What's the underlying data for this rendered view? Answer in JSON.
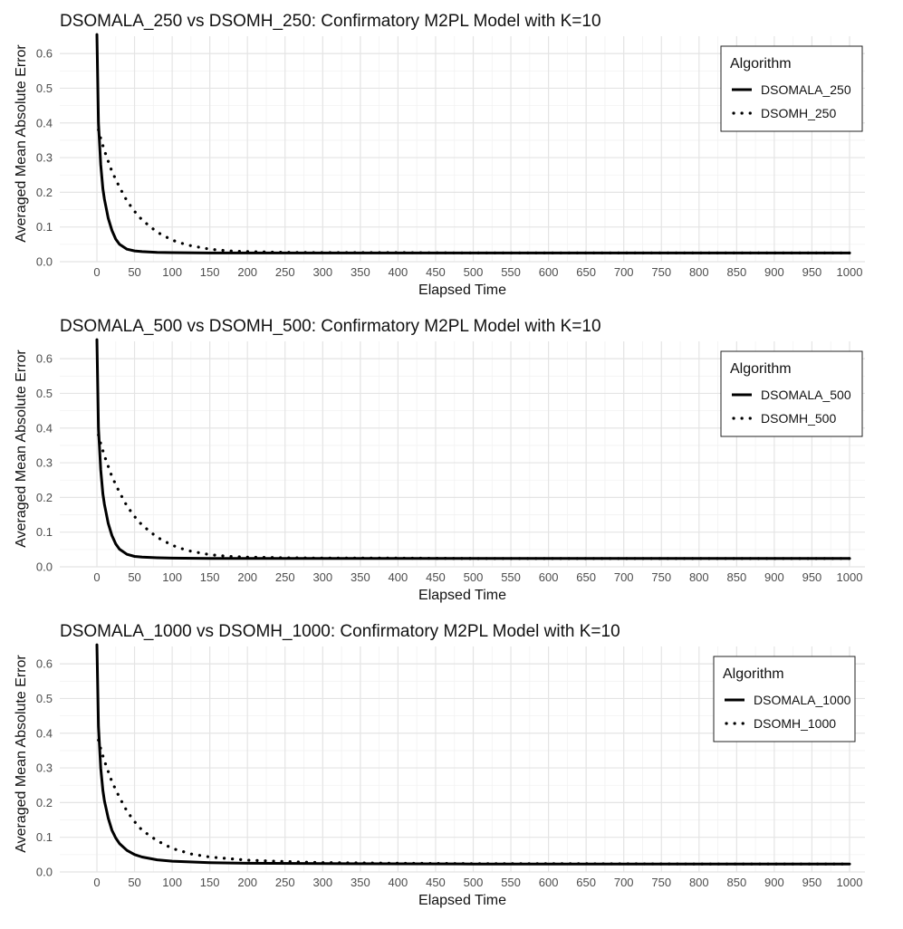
{
  "chart_data": [
    {
      "type": "line",
      "title": "DSOMALA_250 vs DSOMH_250: Confirmatory M2PL Model with K=10",
      "xlabel": "Elapsed Time",
      "ylabel": "Averaged Mean Absolute Error",
      "xlim": [
        0,
        1000
      ],
      "ylim": [
        0,
        0.65
      ],
      "xticks": [
        0,
        50,
        100,
        150,
        200,
        250,
        300,
        350,
        400,
        450,
        500,
        550,
        600,
        650,
        700,
        750,
        800,
        850,
        900,
        950,
        1000
      ],
      "yticks": [
        0.0,
        0.1,
        0.2,
        0.3,
        0.4,
        0.5,
        0.6
      ],
      "grid": true,
      "legend_title": "Algorithm",
      "legend_position": "top-right",
      "series": [
        {
          "name": "DSOMALA_250",
          "style": "solid",
          "x": [
            0,
            2,
            5,
            8,
            10,
            15,
            20,
            25,
            30,
            40,
            50,
            60,
            80,
            100,
            150,
            200,
            300,
            500,
            700,
            1000
          ],
          "y": [
            0.655,
            0.4,
            0.28,
            0.21,
            0.18,
            0.125,
            0.09,
            0.065,
            0.05,
            0.036,
            0.031,
            0.029,
            0.027,
            0.026,
            0.025,
            0.025,
            0.025,
            0.025,
            0.025,
            0.025
          ]
        },
        {
          "name": "DSOMH_250",
          "style": "dotted",
          "x": [
            2,
            5,
            10,
            20,
            30,
            40,
            50,
            60,
            80,
            100,
            120,
            150,
            175,
            200,
            250,
            300,
            400,
            500,
            700,
            1000
          ],
          "y": [
            0.38,
            0.355,
            0.32,
            0.26,
            0.215,
            0.175,
            0.145,
            0.12,
            0.085,
            0.062,
            0.048,
            0.036,
            0.031,
            0.029,
            0.027,
            0.026,
            0.026,
            0.025,
            0.025,
            0.025
          ]
        }
      ]
    },
    {
      "type": "line",
      "title": "DSOMALA_500 vs DSOMH_500: Confirmatory M2PL Model with K=10",
      "xlabel": "Elapsed Time",
      "ylabel": "Averaged Mean Absolute Error",
      "xlim": [
        0,
        1000
      ],
      "ylim": [
        0,
        0.65
      ],
      "xticks": [
        0,
        50,
        100,
        150,
        200,
        250,
        300,
        350,
        400,
        450,
        500,
        550,
        600,
        650,
        700,
        750,
        800,
        850,
        900,
        950,
        1000
      ],
      "yticks": [
        0.0,
        0.1,
        0.2,
        0.3,
        0.4,
        0.5,
        0.6
      ],
      "grid": true,
      "legend_title": "Algorithm",
      "legend_position": "top-right",
      "series": [
        {
          "name": "DSOMALA_500",
          "style": "solid",
          "x": [
            0,
            2,
            5,
            8,
            10,
            15,
            20,
            25,
            30,
            40,
            50,
            60,
            80,
            100,
            150,
            200,
            300,
            500,
            700,
            1000
          ],
          "y": [
            0.655,
            0.4,
            0.28,
            0.21,
            0.18,
            0.125,
            0.09,
            0.066,
            0.051,
            0.036,
            0.03,
            0.028,
            0.026,
            0.025,
            0.024,
            0.024,
            0.024,
            0.024,
            0.024,
            0.024
          ]
        },
        {
          "name": "DSOMH_500",
          "style": "dotted",
          "x": [
            2,
            5,
            10,
            20,
            30,
            40,
            50,
            60,
            80,
            100,
            120,
            150,
            175,
            200,
            250,
            300,
            400,
            500,
            700,
            1000
          ],
          "y": [
            0.38,
            0.355,
            0.32,
            0.26,
            0.215,
            0.175,
            0.145,
            0.12,
            0.085,
            0.062,
            0.047,
            0.035,
            0.03,
            0.028,
            0.026,
            0.025,
            0.025,
            0.024,
            0.024,
            0.024
          ]
        }
      ]
    },
    {
      "type": "line",
      "title": "DSOMALA_1000 vs DSOMH_1000: Confirmatory M2PL Model with K=10",
      "xlabel": "Elapsed Time",
      "ylabel": "Averaged Mean Absolute Error",
      "xlim": [
        0,
        1000
      ],
      "ylim": [
        0,
        0.65
      ],
      "xticks": [
        0,
        50,
        100,
        150,
        200,
        250,
        300,
        350,
        400,
        450,
        500,
        550,
        600,
        650,
        700,
        750,
        800,
        850,
        900,
        950,
        1000
      ],
      "yticks": [
        0.0,
        0.1,
        0.2,
        0.3,
        0.4,
        0.5,
        0.6
      ],
      "grid": true,
      "legend_title": "Algorithm",
      "legend_position": "top-right",
      "series": [
        {
          "name": "DSOMALA_1000",
          "style": "solid",
          "x": [
            0,
            2,
            5,
            8,
            10,
            15,
            20,
            25,
            30,
            40,
            50,
            60,
            80,
            100,
            150,
            200,
            300,
            500,
            700,
            1000
          ],
          "y": [
            0.655,
            0.42,
            0.3,
            0.235,
            0.205,
            0.155,
            0.12,
            0.098,
            0.082,
            0.062,
            0.05,
            0.043,
            0.035,
            0.031,
            0.027,
            0.025,
            0.024,
            0.023,
            0.023,
            0.023
          ]
        },
        {
          "name": "DSOMH_1000",
          "style": "dotted",
          "x": [
            2,
            5,
            10,
            20,
            30,
            40,
            50,
            60,
            80,
            100,
            125,
            150,
            200,
            250,
            300,
            400,
            500,
            600,
            800,
            1000
          ],
          "y": [
            0.38,
            0.355,
            0.32,
            0.26,
            0.215,
            0.175,
            0.145,
            0.12,
            0.09,
            0.068,
            0.052,
            0.043,
            0.034,
            0.03,
            0.027,
            0.025,
            0.024,
            0.024,
            0.023,
            0.023
          ]
        }
      ]
    }
  ]
}
